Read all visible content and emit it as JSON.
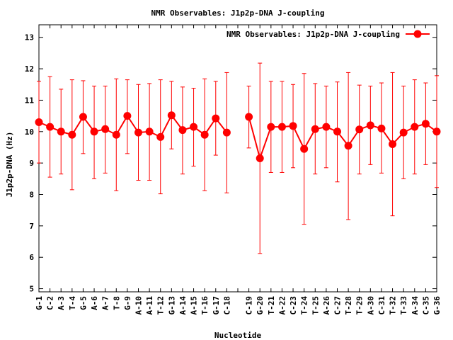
{
  "chart_data": {
    "type": "line",
    "title": "NMR Observables: J1p2p-DNA J-coupling",
    "xlabel": "Nucleotide",
    "ylabel": "J1p2p-DNA (Hz)",
    "ylim": [
      4.9,
      13.4
    ],
    "yticks": [
      5,
      6,
      7,
      8,
      9,
      10,
      11,
      12,
      13
    ],
    "grid": false,
    "legend_position": "top-right",
    "series": [
      {
        "name": "NMR Observables: J1p2p-DNA J-coupling",
        "color": "#ff0000",
        "points": [
          {
            "label": "G-1",
            "y": 10.3,
            "lo": 9.0,
            "hi": 11.6
          },
          {
            "label": "C-2",
            "y": 10.15,
            "lo": 8.55,
            "hi": 11.75
          },
          {
            "label": "A-3",
            "y": 10.0,
            "lo": 8.65,
            "hi": 11.35
          },
          {
            "label": "T-4",
            "y": 9.9,
            "lo": 8.15,
            "hi": 11.65
          },
          {
            "label": "G-5",
            "y": 10.47,
            "lo": 9.3,
            "hi": 11.62
          },
          {
            "label": "A-6",
            "y": 10.0,
            "lo": 8.5,
            "hi": 11.45
          },
          {
            "label": "A-7",
            "y": 10.08,
            "lo": 8.68,
            "hi": 11.45
          },
          {
            "label": "T-8",
            "y": 9.9,
            "lo": 8.12,
            "hi": 11.68
          },
          {
            "label": "G-9",
            "y": 10.5,
            "lo": 9.3,
            "hi": 11.65
          },
          {
            "label": "A-10",
            "y": 9.97,
            "lo": 8.45,
            "hi": 11.5
          },
          {
            "label": "A-11",
            "y": 10.0,
            "lo": 8.45,
            "hi": 11.53
          },
          {
            "label": "T-12",
            "y": 9.83,
            "lo": 8.02,
            "hi": 11.65
          },
          {
            "label": "G-13",
            "y": 10.52,
            "lo": 9.45,
            "hi": 11.6
          },
          {
            "label": "A-14",
            "y": 10.05,
            "lo": 8.65,
            "hi": 11.42
          },
          {
            "label": "A-15",
            "y": 10.15,
            "lo": 8.9,
            "hi": 11.38
          },
          {
            "label": "T-16",
            "y": 9.9,
            "lo": 8.12,
            "hi": 11.68
          },
          {
            "label": "G-17",
            "y": 10.42,
            "lo": 9.25,
            "hi": 11.6
          },
          {
            "label": "C-18",
            "y": 9.97,
            "lo": 8.05,
            "hi": 11.88
          },
          {
            "label": "",
            "y": null,
            "lo": null,
            "hi": null
          },
          {
            "label": "C-19",
            "y": 10.47,
            "lo": 9.48,
            "hi": 11.45
          },
          {
            "label": "G-20",
            "y": 9.15,
            "lo": 6.12,
            "hi": 12.18
          },
          {
            "label": "T-21",
            "y": 10.15,
            "lo": 8.7,
            "hi": 11.6
          },
          {
            "label": "A-22",
            "y": 10.15,
            "lo": 8.7,
            "hi": 11.6
          },
          {
            "label": "C-23",
            "y": 10.18,
            "lo": 8.85,
            "hi": 11.5
          },
          {
            "label": "T-24",
            "y": 9.45,
            "lo": 7.05,
            "hi": 11.85
          },
          {
            "label": "T-25",
            "y": 10.08,
            "lo": 8.65,
            "hi": 11.53
          },
          {
            "label": "A-26",
            "y": 10.15,
            "lo": 8.85,
            "hi": 11.45
          },
          {
            "label": "C-27",
            "y": 10.0,
            "lo": 8.4,
            "hi": 11.58
          },
          {
            "label": "T-28",
            "y": 9.55,
            "lo": 7.2,
            "hi": 11.88
          },
          {
            "label": "T-29",
            "y": 10.07,
            "lo": 8.65,
            "hi": 11.48
          },
          {
            "label": "A-30",
            "y": 10.2,
            "lo": 8.95,
            "hi": 11.45
          },
          {
            "label": "C-31",
            "y": 10.1,
            "lo": 8.68,
            "hi": 11.55
          },
          {
            "label": "T-32",
            "y": 9.6,
            "lo": 7.32,
            "hi": 11.88
          },
          {
            "label": "T-33",
            "y": 9.97,
            "lo": 8.5,
            "hi": 11.45
          },
          {
            "label": "A-34",
            "y": 10.15,
            "lo": 8.65,
            "hi": 11.65
          },
          {
            "label": "C-35",
            "y": 10.25,
            "lo": 8.95,
            "hi": 11.55
          },
          {
            "label": "G-36",
            "y": 10.0,
            "lo": 8.22,
            "hi": 11.78
          }
        ]
      }
    ]
  }
}
